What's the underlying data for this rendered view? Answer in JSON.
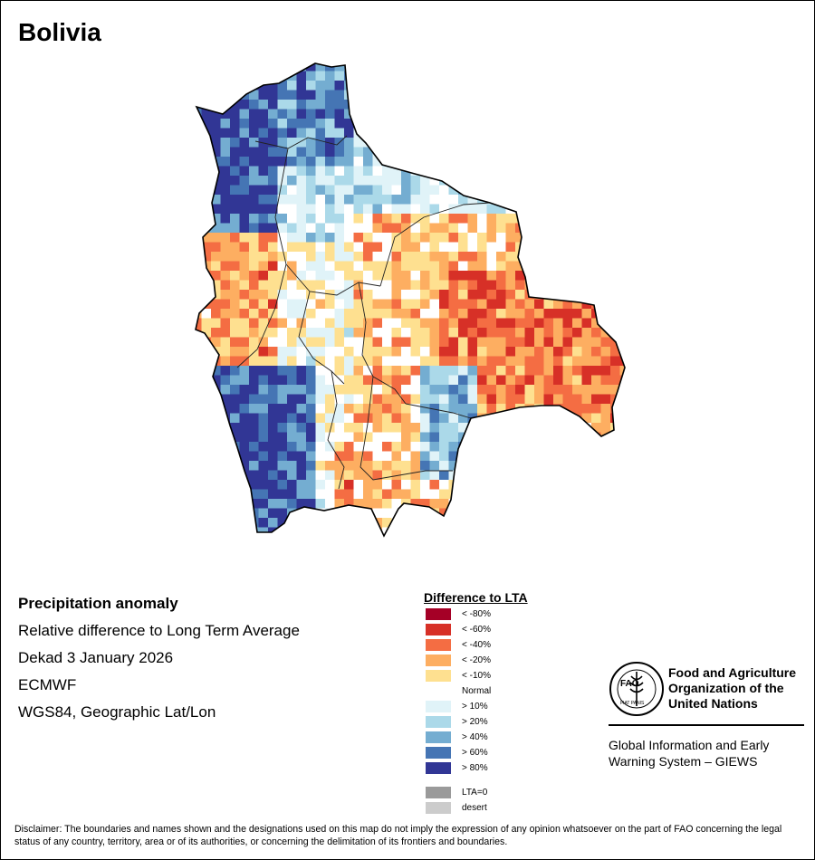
{
  "map": {
    "country": "Bolivia",
    "product": "Precipitation anomaly",
    "description": "Relative difference to Long Term Average",
    "period": "Dekad 3 January 2026",
    "model": "ECMWF",
    "projection": "WGS84, Geographic Lat/Lon"
  },
  "legend": {
    "title": "Difference to LTA",
    "classes": [
      {
        "label": "< -80%",
        "color": "#a50026"
      },
      {
        "label": "< -60%",
        "color": "#d73027"
      },
      {
        "label": "< -40%",
        "color": "#f46d43"
      },
      {
        "label": "< -20%",
        "color": "#fdae61"
      },
      {
        "label": "< -10%",
        "color": "#fee090"
      },
      {
        "label": "Normal",
        "color": "#ffffff"
      },
      {
        "label": "> 10%",
        "color": "#e0f3f8"
      },
      {
        "label": "> 20%",
        "color": "#abd9e9"
      },
      {
        "label": "> 40%",
        "color": "#74add1"
      },
      {
        "label": "> 60%",
        "color": "#4575b4"
      },
      {
        "label": "> 80%",
        "color": "#313695"
      }
    ],
    "extra": [
      {
        "label": "LTA=0",
        "color": "#9a9a9a"
      },
      {
        "label": "desert",
        "color": "#cccccc"
      }
    ]
  },
  "org": {
    "fao_name": "Food and Agriculture Organization of the United Nations",
    "fao_acronym": "FAO",
    "fao_motto": "FIAT PANIS",
    "giews": "Global Information and Early Warning System – GIEWS"
  },
  "disclaimer": "Disclaimer: The boundaries and names shown and the designations used on this map do not imply the expression of any opinion whatsoever on the part of FAO concerning the legal status of any country, territory, area or of its authorities, or concerning the delimitation of its frontiers and boundaries."
}
